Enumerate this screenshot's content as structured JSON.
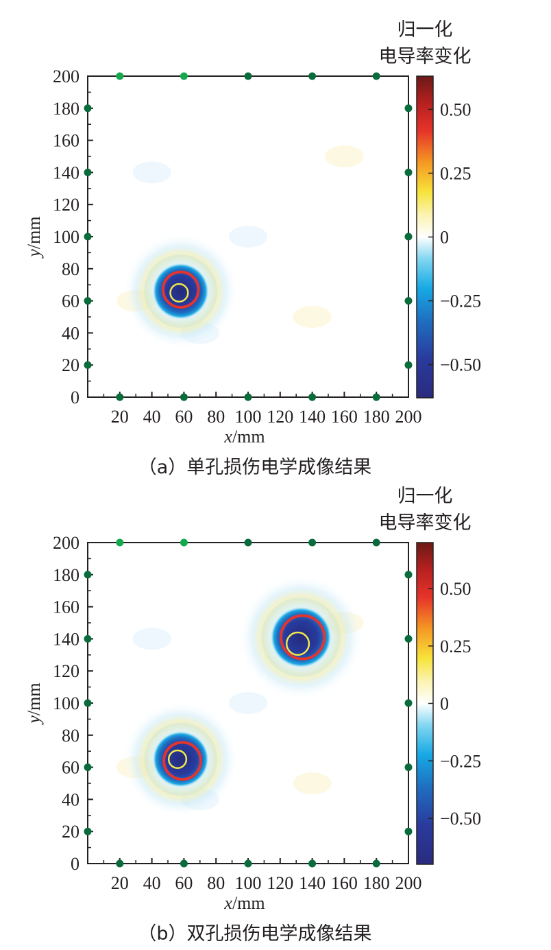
{
  "colors": {
    "sensor_dark": "#0a6b3c",
    "sensor_light": "#16a84e",
    "ring_outer": "#e3342f",
    "ring_inner": "#f2e84a",
    "axis": "#231f20"
  },
  "chart_data": [
    {
      "type": "heatmap",
      "caption": "（a）单孔损伤电学成像结果",
      "xlabel": "x/mm",
      "ylabel": "y/mm",
      "xlim": [
        0,
        200
      ],
      "ylim": [
        0,
        200
      ],
      "x_ticks": [
        "20",
        "40",
        "60",
        "80",
        "100",
        "120",
        "140",
        "160",
        "180",
        "200"
      ],
      "y_ticks": [
        "0",
        "20",
        "40",
        "60",
        "80",
        "100",
        "120",
        "140",
        "160",
        "180",
        "200"
      ],
      "colorbar": {
        "title_line1": "归一化",
        "title_line2": "电导率变化",
        "ticks": [
          "0.50",
          "0.25",
          "0",
          "−0.25",
          "−0.50"
        ],
        "tick_values": [
          0.5,
          0.25,
          0,
          -0.25,
          -0.5
        ],
        "range": [
          -0.63,
          0.63
        ]
      },
      "damages": [
        {
          "center": [
            58,
            66
          ],
          "radius_mm": 12,
          "value": -0.55,
          "reconstructed_circle": {
            "center": [
              58,
              67
            ],
            "radius_mm": 11
          },
          "true_circle": {
            "center": [
              57,
              65
            ],
            "radius_mm": 5.5
          }
        }
      ],
      "sensors_top": [
        20,
        60,
        100,
        140,
        180
      ],
      "sensors_bottom": [
        20,
        60,
        100,
        140,
        180
      ],
      "sensors_left": [
        20,
        60,
        100,
        140,
        180
      ],
      "sensors_right": [
        20,
        60,
        100,
        140,
        180
      ],
      "grid": false
    },
    {
      "type": "heatmap",
      "caption": "（b）双孔损伤电学成像结果",
      "xlabel": "x/mm",
      "ylabel": "y/mm",
      "xlim": [
        0,
        200
      ],
      "ylim": [
        0,
        200
      ],
      "x_ticks": [
        "20",
        "40",
        "60",
        "80",
        "100",
        "120",
        "140",
        "160",
        "180",
        "200"
      ],
      "y_ticks": [
        "0",
        "20",
        "40",
        "60",
        "80",
        "100",
        "120",
        "140",
        "160",
        "180",
        "200"
      ],
      "colorbar": {
        "title_line1": "归一化",
        "title_line2": "电导率变化",
        "ticks": [
          "0.50",
          "0.25",
          "0",
          "−0.25",
          "−0.50"
        ],
        "tick_values": [
          0.5,
          0.25,
          0,
          -0.25,
          -0.5
        ],
        "range": [
          -0.7,
          0.7
        ]
      },
      "damages": [
        {
          "center": [
            58,
            65
          ],
          "radius_mm": 12,
          "value": -0.6,
          "reconstructed_circle": {
            "center": [
              59,
              64
            ],
            "radius_mm": 11.5
          },
          "true_circle": {
            "center": [
              56,
              65
            ],
            "radius_mm": 5.5
          }
        },
        {
          "center": [
            133,
            141
          ],
          "radius_mm": 13,
          "value": -0.6,
          "reconstructed_circle": {
            "center": [
              134,
              141
            ],
            "radius_mm": 13.5
          },
          "true_circle": {
            "center": [
              131,
              137
            ],
            "radius_mm": 7
          }
        }
      ],
      "sensors_top": [
        20,
        60,
        100,
        140,
        180
      ],
      "sensors_bottom": [
        20,
        60,
        100,
        140,
        180
      ],
      "sensors_left": [
        20,
        60,
        100,
        140,
        180
      ],
      "sensors_right": [
        20,
        60,
        100,
        140,
        180
      ],
      "grid": false
    }
  ]
}
